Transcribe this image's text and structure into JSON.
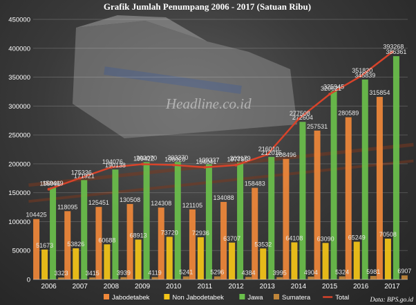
{
  "chart_data": {
    "type": "bar",
    "title": "Grafik Jumlah Penumpang 2006 - 2017 (Satuan Ribu)",
    "categories": [
      "2006",
      "2007",
      "2008",
      "2009",
      "2010",
      "2011",
      "2012",
      "2013",
      "2014",
      "2015",
      "2016",
      "2017"
    ],
    "series": [
      {
        "name": "Jabodetabek",
        "color": "#f0883a",
        "values": [
          104425,
          118095,
          125451,
          130508,
          124308,
          121105,
          134088,
          158483,
          208496,
          257531,
          280589,
          315854
        ]
      },
      {
        "name": "Non Jabodetabek",
        "color": "#f5c518",
        "values": [
          51673,
          53826,
          60688,
          68913,
          73720,
          72936,
          63707,
          53532,
          64108,
          63090,
          65249,
          70508
        ]
      },
      {
        "name": "Jawa",
        "color": "#6abf4b",
        "values": [
          159419,
          171921,
          190138,
          203070,
          203270,
          199337,
          202179,
          212015,
          272604,
          325945,
          345839,
          386361
        ]
      },
      {
        "name": "Sumatera",
        "color": "#c0863a",
        "values": [
          3323,
          3415,
          3939,
          4119,
          5241,
          5296,
          4384,
          3995,
          4904,
          5324,
          5981,
          6907
        ]
      },
      {
        "name": "Total",
        "type": "line",
        "color": "#d8432a",
        "values": [
          156096,
          175336,
          194076,
          199422,
          198028,
          194041,
          197795,
          216010,
          277508,
          320621,
          351820,
          393268
        ]
      }
    ],
    "ylim": [
      0,
      450000
    ],
    "yticks": [
      0,
      50000,
      100000,
      150000,
      200000,
      250000,
      300000,
      350000,
      400000,
      450000
    ],
    "legend_position": "bottom",
    "source": "Data: BPS.go.id",
    "watermark": "Headline.co.id"
  }
}
